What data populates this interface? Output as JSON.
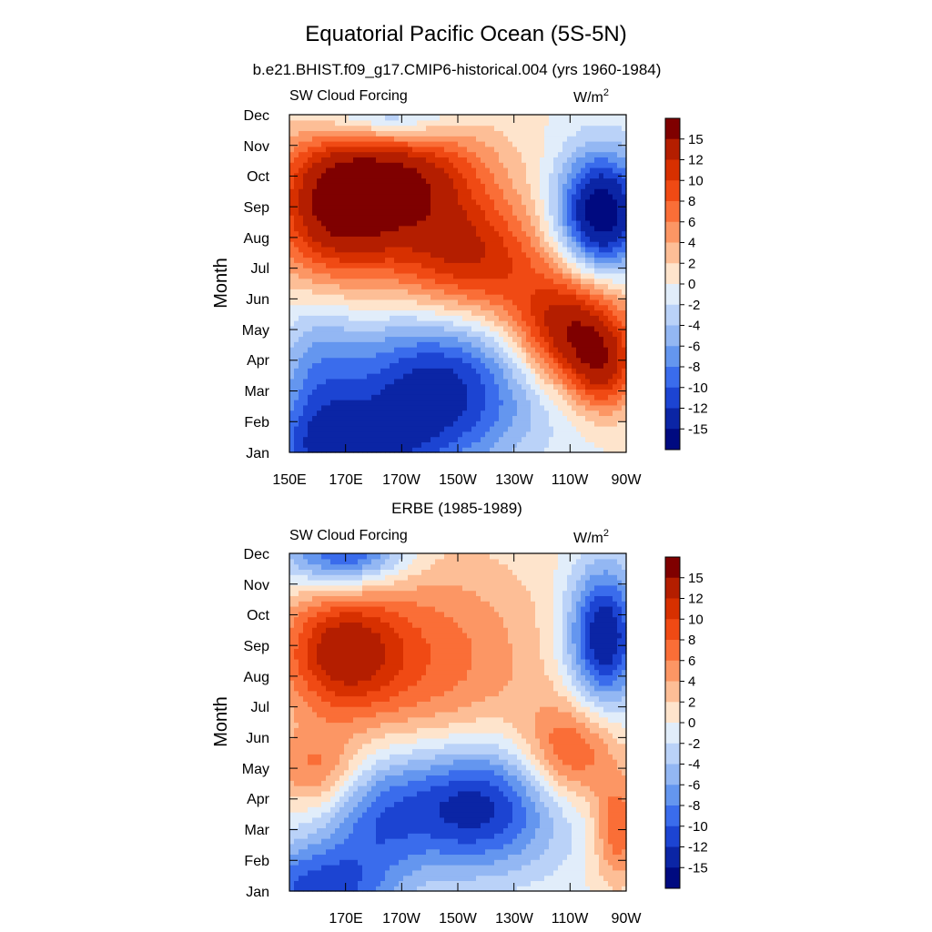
{
  "figure": {
    "title": "Equatorial Pacific Ocean (5S-5N)"
  },
  "colorbar": {
    "labels": [
      "15",
      "12",
      "10",
      "8",
      "6",
      "4",
      "2",
      "0",
      "-2",
      "-4",
      "-6",
      "-8",
      "-10",
      "-12",
      "-15"
    ],
    "colors": [
      "#7f0000",
      "#b41e00",
      "#d73000",
      "#f04a14",
      "#fa6e37",
      "#fc9664",
      "#fdbe96",
      "#fee4cc",
      "#e1edfa",
      "#bad2f8",
      "#93b7f3",
      "#6496ef",
      "#3a6cec",
      "#1c44d2",
      "#0b25a5",
      "#000a80"
    ]
  },
  "chart_data": [
    {
      "type": "heatmap",
      "subtitle": "b.e21.BHIST.f09_g17.CMIP6-historical.004 (yrs 1960-1984)",
      "left_label": "SW Cloud Forcing",
      "units": "W/m",
      "units_sup": "2",
      "ylabel": "Month",
      "xlabel": "",
      "x_ticks": [
        "150E",
        "170E",
        "170W",
        "150W",
        "130W",
        "110W",
        "90W"
      ],
      "y_ticks": [
        "Jan",
        "Feb",
        "Mar",
        "Apr",
        "May",
        "Jun",
        "Jul",
        "Aug",
        "Sep",
        "Oct",
        "Nov",
        "Dec"
      ],
      "x_range_deg_east": [
        150,
        270
      ],
      "features": [
        {
          "lon": 190,
          "month": 10.0,
          "amp": 14,
          "slon": 22,
          "smon": 1.6
        },
        {
          "lon": 165,
          "month": 8.8,
          "amp": 12,
          "slon": 16,
          "smon": 1.8
        },
        {
          "lon": 215,
          "month": 7.2,
          "amp": 11,
          "slon": 20,
          "smon": 1.4
        },
        {
          "lon": 250,
          "month": 5.0,
          "amp": 15,
          "slon": 15,
          "smon": 1.3
        },
        {
          "lon": 262,
          "month": 3.6,
          "amp": 9,
          "slon": 9,
          "smon": 1.0
        },
        {
          "lon": 261,
          "month": 8.8,
          "amp": -18,
          "slon": 11,
          "smon": 1.4
        },
        {
          "lon": 203,
          "month": 3.2,
          "amp": -13,
          "slon": 26,
          "smon": 1.7
        },
        {
          "lon": 170,
          "month": 1.0,
          "amp": -10,
          "slon": 25,
          "smon": 1.2
        },
        {
          "lon": 160,
          "month": 3.5,
          "amp": -5,
          "slon": 10,
          "smon": 2.0
        },
        {
          "lon": 185,
          "month": 12.0,
          "amp": -10,
          "slon": 18,
          "smon": 0.8
        }
      ]
    },
    {
      "type": "heatmap",
      "subtitle": "ERBE (1985-1989)",
      "left_label": "SW Cloud Forcing",
      "units": "W/m",
      "units_sup": "2",
      "ylabel": "Month",
      "xlabel": "",
      "x_ticks": [
        "",
        "170E",
        "170W",
        "150W",
        "130W",
        "110W",
        "90W"
      ],
      "y_ticks": [
        "Jan",
        "Feb",
        "Mar",
        "Apr",
        "May",
        "Jun",
        "Jul",
        "Aug",
        "Sep",
        "Oct",
        "Nov",
        "Dec"
      ],
      "x_range_deg_east": [
        150,
        270
      ],
      "features": [
        {
          "lon": 168,
          "month": 8.8,
          "amp": 11,
          "slon": 15,
          "smon": 1.4
        },
        {
          "lon": 200,
          "month": 8.5,
          "amp": 7,
          "slon": 28,
          "smon": 2.5
        },
        {
          "lon": 160,
          "month": 5.0,
          "amp": 6,
          "slon": 12,
          "smon": 0.9
        },
        {
          "lon": 250,
          "month": 5.5,
          "amp": 9,
          "slon": 12,
          "smon": 1.2
        },
        {
          "lon": 267,
          "month": 3.0,
          "amp": 8,
          "slon": 6,
          "smon": 1.2
        },
        {
          "lon": 215,
          "month": 3.8,
          "amp": -14,
          "slon": 22,
          "smon": 1.5
        },
        {
          "lon": 160,
          "month": 1.0,
          "amp": -11,
          "slon": 18,
          "smon": 1.2
        },
        {
          "lon": 170,
          "month": 12.0,
          "amp": -12,
          "slon": 15,
          "smon": 0.8
        },
        {
          "lon": 262,
          "month": 9.3,
          "amp": -15,
          "slon": 9,
          "smon": 1.6
        },
        {
          "lon": 180,
          "month": 3.5,
          "amp": -6,
          "slon": 12,
          "smon": 1.5
        }
      ]
    }
  ]
}
